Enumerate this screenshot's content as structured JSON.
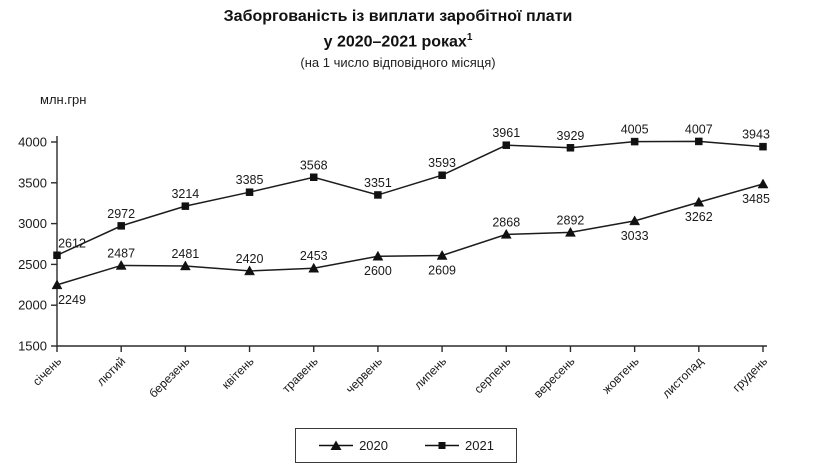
{
  "chart_data": {
    "type": "line",
    "title_line1": "Заборгованість із виплати заробітної плати",
    "title_line2": "у 2020–2021 роках",
    "title_superscript": "1",
    "subtitle": "(на 1 число відповідного місяця)",
    "xlabel": "",
    "ylabel": "млн.грн",
    "categories": [
      "січень",
      "лютий",
      "березень",
      "квітень",
      "травень",
      "червень",
      "липень",
      "серпень",
      "вересень",
      "жовтень",
      "листопад",
      "грудень"
    ],
    "ylim": [
      1500,
      4000
    ],
    "yticks": [
      1500,
      2000,
      2500,
      3000,
      3500,
      4000
    ],
    "grid": false,
    "legend_position": "bottom",
    "line_color": "#1c1c1c",
    "text_color": "#1a1a1a",
    "series": [
      {
        "name": "2020",
        "marker": "triangle",
        "values": [
          2249,
          2487,
          2481,
          2420,
          2453,
          2600,
          2609,
          2868,
          2892,
          3033,
          3262,
          3485
        ],
        "label_positions": [
          "below",
          "above",
          "above",
          "above",
          "above",
          "below",
          "below",
          "above",
          "above",
          "below",
          "below",
          "below"
        ]
      },
      {
        "name": "2021",
        "marker": "square",
        "values": [
          2612,
          2972,
          3214,
          3385,
          3568,
          3351,
          3593,
          3961,
          3929,
          4005,
          4007,
          3943
        ],
        "label_positions": [
          "above",
          "above",
          "above",
          "above",
          "above",
          "above",
          "above",
          "above",
          "above",
          "above",
          "above",
          "above"
        ]
      }
    ]
  }
}
